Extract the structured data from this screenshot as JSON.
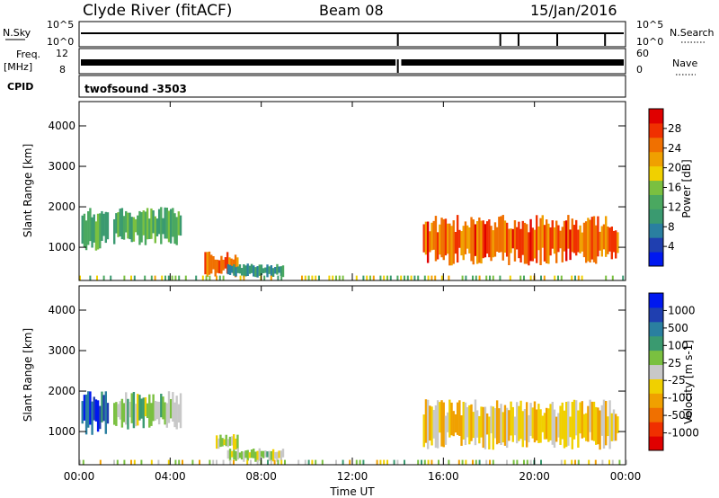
{
  "header": {
    "station": "Clyde River (fitACF)",
    "beam": "Beam 08",
    "date": "15/Jan/2016"
  },
  "strip_panels": {
    "nsky": {
      "label": "N.Sky",
      "ticks": [
        "10^5",
        "10^0"
      ]
    },
    "nsearch": {
      "label": "N.Search",
      "ticks": [
        "10^5",
        "10^0"
      ]
    },
    "freq": {
      "label_line1": "Freq.",
      "label_line2": "[MHz]",
      "ticks": [
        "12",
        "8"
      ]
    },
    "nave": {
      "label": "Nave",
      "ticks": [
        "60",
        "0"
      ]
    },
    "cpid": {
      "label": "CPID",
      "program": "twofsound -3503"
    }
  },
  "colors": {
    "power": [
      "#0018f0",
      "#1f3fb0",
      "#2a7fa0",
      "#3a9a70",
      "#4aa860",
      "#7ac040",
      "#f0d000",
      "#f0a000",
      "#f07000",
      "#f03000",
      "#e00000"
    ],
    "velocity": [
      "#e00000",
      "#f03000",
      "#f07000",
      "#f0a000",
      "#f0d000",
      "#c8c8c8",
      "#7ac040",
      "#3a9a70",
      "#2a7fa0",
      "#1f3fb0",
      "#0018f0"
    ]
  },
  "chart_data": [
    {
      "type": "heatmap",
      "title": "Power",
      "ylabel": "Slant Range [km]",
      "y_ticks": [
        "1000",
        "2000",
        "3000",
        "4000"
      ],
      "ylim": [
        180,
        4600
      ],
      "colorbar": {
        "label": "Power [dB]",
        "ticks": [
          "4",
          "8",
          "12",
          "16",
          "20",
          "24",
          "28"
        ],
        "range": [
          0,
          32
        ]
      },
      "x_range_hours": [
        0,
        24
      ],
      "regions": [
        {
          "t0": 0.1,
          "t1": 1.3,
          "r0": 900,
          "r1": 2000,
          "value": 12
        },
        {
          "t0": 1.5,
          "t1": 4.5,
          "r0": 1050,
          "r1": 2000,
          "value": 13
        },
        {
          "t0": 5.5,
          "t1": 7.0,
          "r0": 250,
          "r1": 900,
          "value": 24
        },
        {
          "t0": 6.5,
          "t1": 9.0,
          "r0": 250,
          "r1": 600,
          "value": 10
        },
        {
          "t0": 15.1,
          "t1": 23.7,
          "r0": 550,
          "r1": 1800,
          "value": 26
        }
      ]
    },
    {
      "type": "heatmap",
      "title": "Velocity",
      "ylabel": "Slant Range [km]",
      "y_ticks": [
        "1000",
        "2000",
        "3000",
        "4000"
      ],
      "ylim": [
        180,
        4600
      ],
      "colorbar": {
        "label": "Velocity [m s-1]",
        "ticks": [
          "1000",
          "500",
          "100",
          "25",
          "-25",
          "-100",
          "-500",
          "-1000"
        ],
        "range": [
          -1200,
          1200
        ]
      },
      "x_range_hours": [
        0,
        24
      ],
      "xlabel": "Time UT",
      "x_ticks": [
        "00:00",
        "04:00",
        "08:00",
        "12:00",
        "16:00",
        "20:00",
        "00:00"
      ],
      "regions": [
        {
          "t0": 0.1,
          "t1": 1.3,
          "r0": 900,
          "r1": 2000,
          "value": 800
        },
        {
          "t0": 1.5,
          "t1": 4.5,
          "r0": 1050,
          "r1": 2000,
          "value": 150
        },
        {
          "t0": 6.0,
          "t1": 7.0,
          "r0": 550,
          "r1": 950,
          "value": 0
        },
        {
          "t0": 6.5,
          "t1": 9.0,
          "r0": 250,
          "r1": 600,
          "value": 70
        },
        {
          "t0": 15.1,
          "t1": 23.7,
          "r0": 550,
          "r1": 1800,
          "value": -200
        }
      ]
    }
  ]
}
